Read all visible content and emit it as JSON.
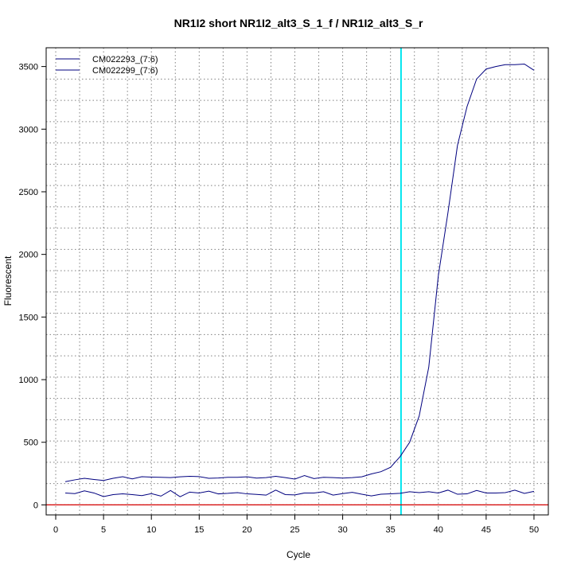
{
  "chart_data": {
    "type": "line",
    "title": "NR1I2 short NR1I2_alt3_S_1_f / NR1I2_alt3_S_r",
    "xlabel": "Cycle",
    "ylabel": "Fluorescent",
    "xlim": [
      -1,
      51.5
    ],
    "ylim": [
      -80,
      3650
    ],
    "x_ticks": [
      0,
      5,
      10,
      15,
      20,
      25,
      30,
      35,
      40,
      45,
      50
    ],
    "y_ticks": [
      0,
      500,
      1000,
      1500,
      2000,
      2500,
      3000,
      3500
    ],
    "x_grid": [
      0,
      2.5,
      5,
      7.5,
      10,
      12.5,
      15,
      17.5,
      20,
      22.5,
      25,
      27.5,
      30,
      32.5,
      35,
      37.5,
      40,
      42.5,
      45,
      47.5,
      50
    ],
    "y_grid": [
      0,
      170,
      340,
      510,
      680,
      850,
      1020,
      1190,
      1360,
      1530,
      1700,
      1870,
      2040,
      2210,
      2380,
      2550,
      2720,
      2890,
      3060,
      3230,
      3400
    ],
    "threshold_cycle": 36.1,
    "threshold_color": "#00e5ee",
    "baseline_value": 0,
    "baseline_color": "#d40000",
    "series_color": "#00007f",
    "legend_position": "top-left",
    "x": [
      1,
      2,
      3,
      4,
      5,
      6,
      7,
      8,
      9,
      10,
      11,
      12,
      13,
      14,
      15,
      16,
      17,
      18,
      19,
      20,
      21,
      22,
      23,
      24,
      25,
      26,
      27,
      28,
      29,
      30,
      31,
      32,
      33,
      34,
      35,
      36,
      37,
      38,
      39,
      40,
      41,
      42,
      43,
      44,
      45,
      46,
      47,
      48,
      49,
      50
    ],
    "series": [
      {
        "name": "CM022293_(7:6)",
        "values": [
          185,
          200,
          212,
          203,
          195,
          212,
          225,
          208,
          225,
          222,
          220,
          218,
          224,
          228,
          226,
          212,
          215,
          220,
          220,
          224,
          214,
          218,
          228,
          218,
          206,
          234,
          210,
          220,
          218,
          214,
          218,
          224,
          247,
          265,
          300,
          385,
          500,
          710,
          1100,
          1830,
          2330,
          2870,
          3180,
          3400,
          3480,
          3500,
          3515,
          3515,
          3520,
          3470
        ]
      },
      {
        "name": "CM022299_(7:6)",
        "values": [
          95,
          90,
          112,
          95,
          66,
          82,
          88,
          82,
          74,
          90,
          70,
          115,
          65,
          102,
          95,
          110,
          88,
          92,
          98,
          88,
          84,
          78,
          118,
          82,
          80,
          95,
          95,
          105,
          78,
          90,
          100,
          85,
          72,
          85,
          88,
          92,
          105,
          98,
          105,
          95,
          118,
          85,
          88,
          115,
          95,
          95,
          98,
          118,
          92,
          108
        ]
      }
    ]
  }
}
